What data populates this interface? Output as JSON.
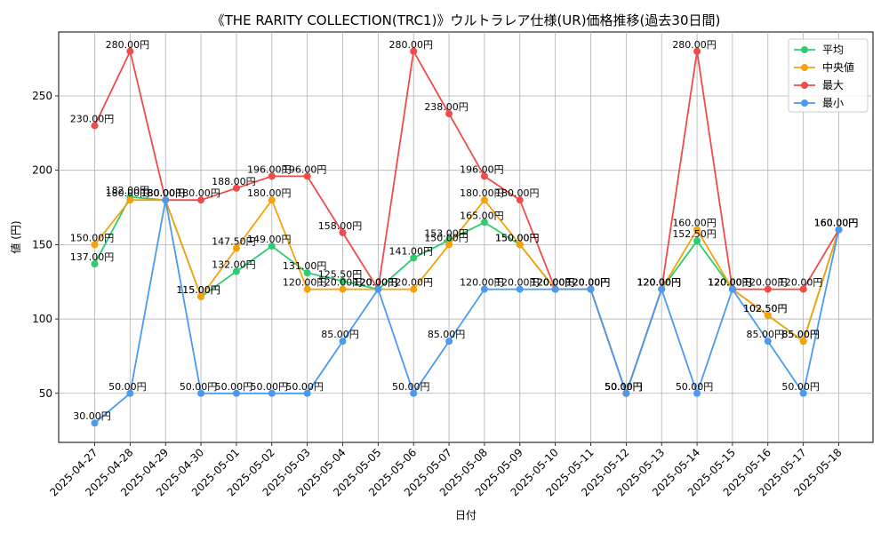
{
  "chart_data": {
    "type": "line",
    "title": "《THE RARITY COLLECTION(TRC1)》ウルトラレア仕様(UR)価格推移(過去30日間)",
    "xlabel": "日付",
    "ylabel": "値 (円)",
    "ylim": [
      17,
      293
    ],
    "yticks": [
      50,
      100,
      150,
      200,
      250
    ],
    "grid": true,
    "legend_position": "top-right",
    "label_suffix": "円",
    "categories": [
      "2025-04-27",
      "2025-04-28",
      "2025-04-29",
      "2025-04-30",
      "2025-05-01",
      "2025-05-02",
      "2025-05-03",
      "2025-05-04",
      "2025-05-05",
      "2025-05-06",
      "2025-05-07",
      "2025-05-08",
      "2025-05-09",
      "2025-05-10",
      "2025-05-11",
      "2025-05-12",
      "2025-05-13",
      "2025-05-14",
      "2025-05-15",
      "2025-05-16",
      "2025-05-17",
      "2025-05-18"
    ],
    "series": [
      {
        "name": "平均",
        "color": "#2ecc71",
        "values": [
          137,
          182,
          180,
          115,
          132,
          149,
          131,
          125.5,
          120,
          141,
          153,
          165,
          150,
          120,
          120,
          50,
          120,
          152.5,
          120,
          102.5,
          85,
          160
        ]
      },
      {
        "name": "中央値",
        "color": "#f5a20a",
        "values": [
          150,
          180,
          180,
          115,
          147.5,
          180,
          120,
          120,
          120,
          120,
          150,
          180,
          150,
          120,
          120,
          50,
          120,
          160,
          120,
          102.5,
          85,
          160
        ]
      },
      {
        "name": "最大",
        "color": "#ef4b4b",
        "values": [
          230,
          280,
          180,
          180,
          188,
          196,
          196,
          158,
          120,
          280,
          238,
          196,
          180,
          120,
          120,
          50,
          120,
          280,
          120,
          120,
          120,
          160
        ]
      },
      {
        "name": "最小",
        "color": "#4a9af0",
        "values": [
          30,
          50,
          180,
          50,
          50,
          50,
          50,
          85,
          120,
          50,
          85,
          120,
          120,
          120,
          120,
          50,
          120,
          50,
          120,
          85,
          50,
          160
        ]
      }
    ]
  }
}
